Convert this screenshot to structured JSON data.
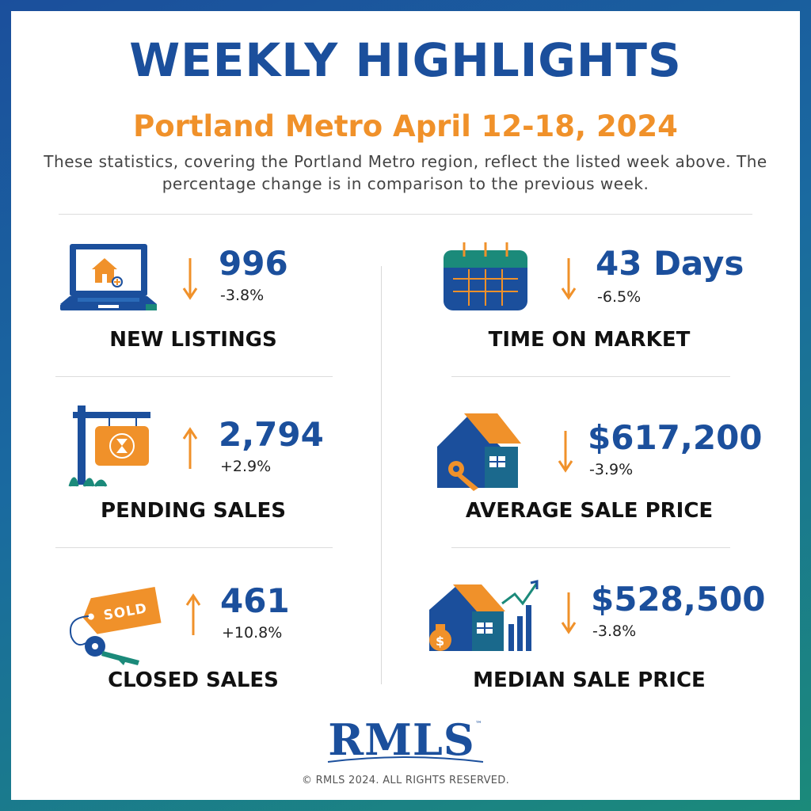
{
  "header": {
    "title": "WEEKLY HIGHLIGHTS",
    "subtitle": "Portland Metro April 12-18, 2024",
    "intro": "These statistics, covering the Portland Metro region, reflect the listed week above. The percentage change is in comparison to the previous week."
  },
  "colors": {
    "primary_blue": "#1b4f9c",
    "accent_orange": "#f0912a",
    "teal": "#1b8a7a"
  },
  "stats": [
    {
      "label": "NEW LISTINGS",
      "value": "996",
      "change": "-3.8%",
      "direction": "down",
      "icon": "laptop-house-icon"
    },
    {
      "label": "TIME ON MARKET",
      "value": "43 Days",
      "change": "-6.5%",
      "direction": "down",
      "icon": "calendar-icon"
    },
    {
      "label": "PENDING SALES",
      "value": "2,794",
      "change": "+2.9%",
      "direction": "up",
      "icon": "hourglass-sign-icon"
    },
    {
      "label": "AVERAGE SALE PRICE",
      "value": "$617,200",
      "change": "-3.9%",
      "direction": "down",
      "icon": "house-key-icon"
    },
    {
      "label": "CLOSED SALES",
      "value": "461",
      "change": "+10.8%",
      "direction": "up",
      "icon": "sold-tag-keys-icon"
    },
    {
      "label": "MEDIAN SALE PRICE",
      "value": "$528,500",
      "change": "-3.8%",
      "direction": "down",
      "icon": "house-chart-money-icon"
    }
  ],
  "icon_text": {
    "sold": "SOLD",
    "dollar": "$"
  },
  "footer": {
    "logo": "RMLS",
    "trademark": "™",
    "copyright": "© RMLS 2024. ALL RIGHTS RESERVED."
  }
}
